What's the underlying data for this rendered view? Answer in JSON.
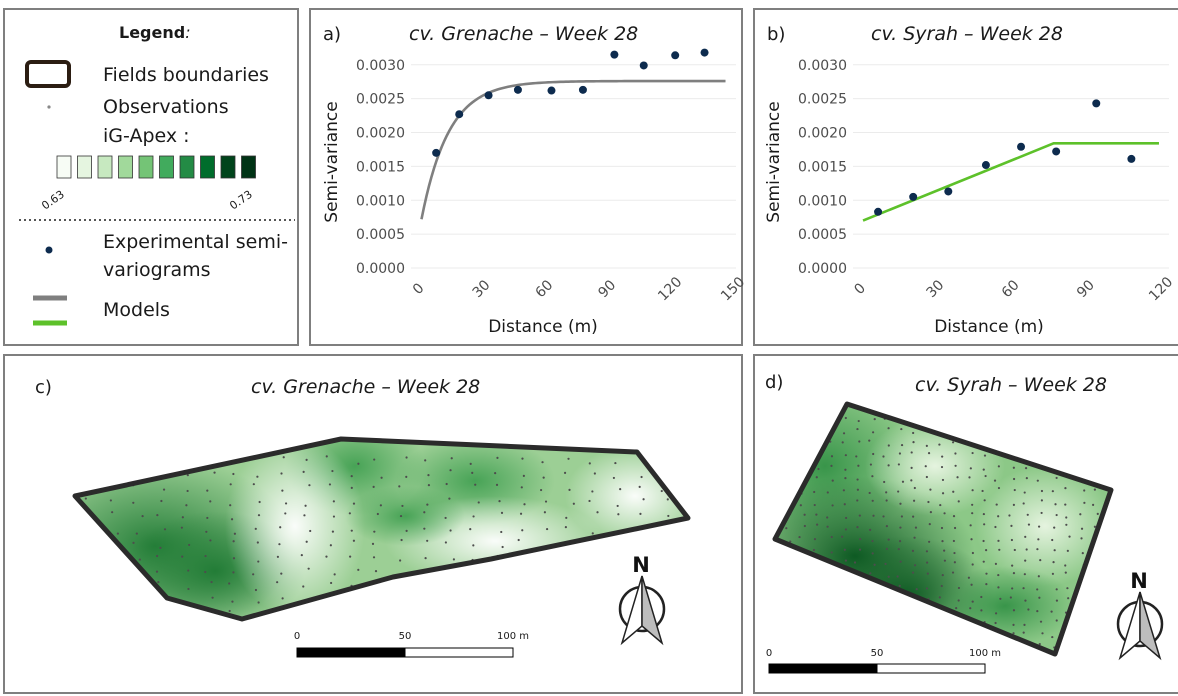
{
  "legend": {
    "title": "Legend",
    "title_suffix": ":",
    "fields_boundaries": "Fields boundaries",
    "observations": "Observations",
    "igapex": "iG-Apex :",
    "ramp_min": "0.63",
    "ramp_max": "0.73",
    "ramp_colors": [
      "#f7fcf5",
      "#e5f5e0",
      "#c7e9c0",
      "#a1d99b",
      "#74c476",
      "#41ab5d",
      "#238b45",
      "#006d2c",
      "#00441b",
      "#003315"
    ],
    "exp_line1": "Experimental semi-",
    "exp_line2": "variograms",
    "models": "Models"
  },
  "colors": {
    "grenache_model": "#7f7f7f",
    "syrah_model": "#5dc12a",
    "points": "#0d2b4e",
    "boundary": "#2b2b2b"
  },
  "chart_data": [
    {
      "type": "scatter",
      "panel": "a)",
      "title": "cv. Grenache – Week 28",
      "xlabel": "Distance (m)",
      "ylabel": "Semi-variance",
      "xlim": [
        -5,
        150
      ],
      "ylim": [
        0,
        0.0031
      ],
      "xticks": [
        "0",
        "30",
        "60",
        "90",
        "120",
        "150"
      ],
      "yticks": [
        "0.0000",
        "0.0005",
        "0.0010",
        "0.0015",
        "0.0020",
        "0.0025",
        "0.0030"
      ],
      "grid": true,
      "points": {
        "x": [
          7,
          18,
          32,
          46,
          62,
          77,
          92,
          106,
          121,
          135
        ],
        "y": [
          0.0017,
          0.00227,
          0.00255,
          0.00263,
          0.00262,
          0.00263,
          0.00315,
          0.00299,
          0.00314,
          0.00318
        ]
      },
      "model": {
        "type": "exponential",
        "nugget": 0.00072,
        "sill": 0.00276,
        "range": 13,
        "x_start": 0,
        "x_end": 145
      }
    },
    {
      "type": "scatter",
      "panel": "b)",
      "title": "cv. Syrah – Week 28",
      "xlabel": "Distance (m)",
      "ylabel": "Semi-variance",
      "xlim": [
        -4,
        122
      ],
      "ylim": [
        0,
        0.0031
      ],
      "xticks": [
        "0",
        "30",
        "60",
        "90",
        "120"
      ],
      "yticks": [
        "0.0000",
        "0.0005",
        "0.0010",
        "0.0015",
        "0.0020",
        "0.0025",
        "0.0030"
      ],
      "grid": true,
      "points": {
        "x": [
          6,
          20,
          34,
          49,
          63,
          77,
          93,
          107
        ],
        "y": [
          0.00083,
          0.00105,
          0.00113,
          0.00152,
          0.00179,
          0.00172,
          0.00243,
          0.00161
        ]
      },
      "model": {
        "type": "linear-sill",
        "x": [
          0,
          76,
          118
        ],
        "y": [
          0.0007,
          0.00184,
          0.00184
        ]
      }
    }
  ],
  "maps": {
    "c": {
      "label": "c)",
      "title": "cv. Grenache – Week 28",
      "scale_0": "0",
      "scale_50": "50",
      "scale_100": "100 m",
      "north": "N"
    },
    "d": {
      "label": "d)",
      "title": "cv. Syrah – Week 28",
      "scale_0": "0",
      "scale_50": "50",
      "scale_100": "100 m",
      "north": "N"
    }
  }
}
